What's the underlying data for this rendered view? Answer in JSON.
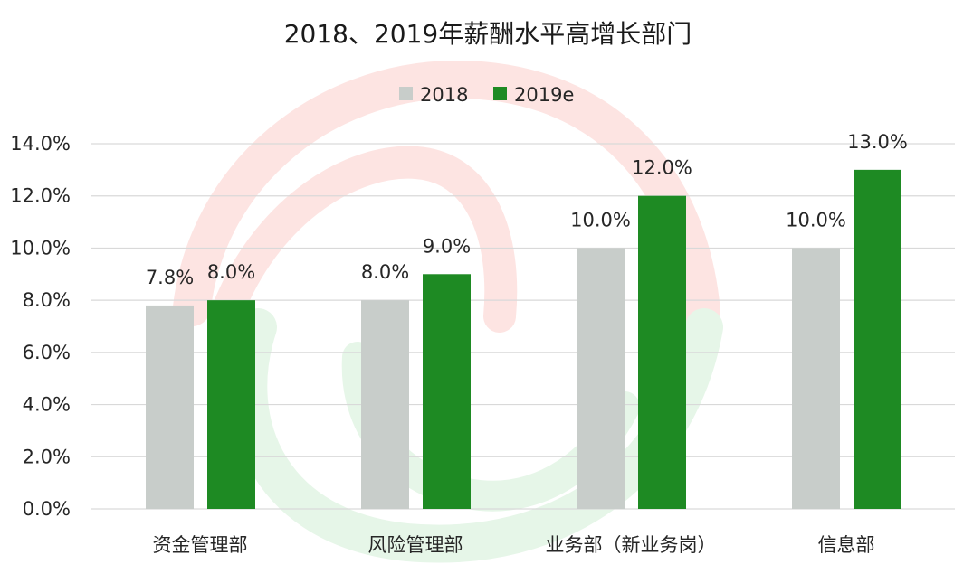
{
  "chart_data": {
    "type": "bar",
    "title": "2018、2019年薪酬水平高增长部门",
    "categories": [
      "资金管理部",
      "风险管理部",
      "业务部（新业务岗）",
      "信息部"
    ],
    "series": [
      {
        "name": "2018",
        "color": "#c8cdca",
        "values": [
          7.8,
          8.0,
          10.0,
          10.0
        ],
        "labels": [
          "7.8%",
          "8.0%",
          "10.0%",
          "10.0%"
        ]
      },
      {
        "name": "2019e",
        "color": "#1e8a23",
        "values": [
          8.0,
          9.0,
          12.0,
          13.0
        ],
        "labels": [
          "8.0%",
          "9.0%",
          "12.0%",
          "13.0%"
        ]
      }
    ],
    "ylim": [
      0,
      14
    ],
    "yticks": [
      0,
      2,
      4,
      6,
      8,
      10,
      12,
      14
    ],
    "ytick_labels": [
      "0.0%",
      "2.0%",
      "4.0%",
      "6.0%",
      "8.0%",
      "10.0%",
      "12.0%",
      "14.0%"
    ],
    "legend": "top-center",
    "grid": true
  }
}
